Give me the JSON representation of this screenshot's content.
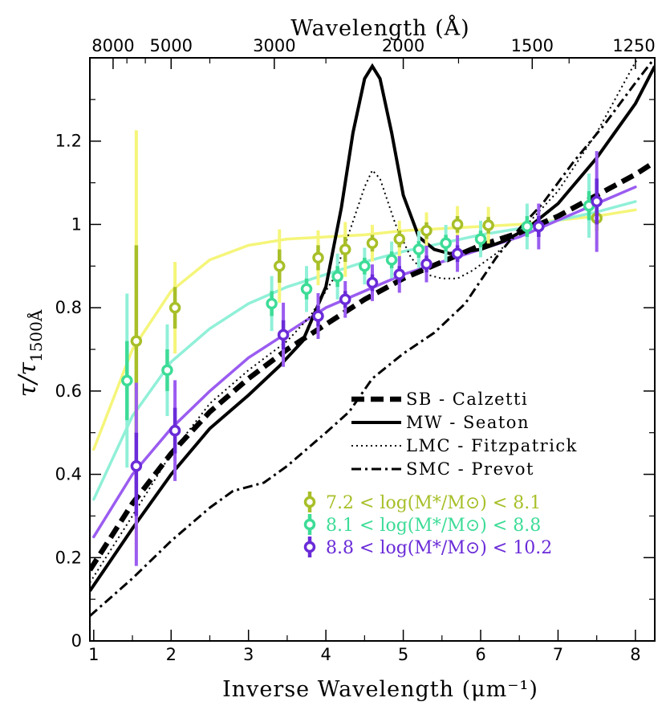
{
  "chart_data": {
    "type": "line",
    "xlabel": "Inverse Wavelength (μm⁻¹)",
    "ylabel": "τ/τ1500Å",
    "top_axis_label": "Wavelength (Å)",
    "xlim": [
      0.95,
      8.25
    ],
    "ylim": [
      0,
      1.4
    ],
    "x_ticks": [
      "1",
      "2",
      "3",
      "4",
      "5",
      "6",
      "7",
      "8"
    ],
    "y_ticks": [
      "0",
      "0.2",
      "0.4",
      "0.6",
      "0.8",
      "1",
      "1.2"
    ],
    "top_ticks": [
      "8000",
      "5000",
      "3000",
      "2000",
      "1500",
      "1250"
    ],
    "curves": [
      {
        "name": "SB - Calzetti",
        "style": "dashed-thick",
        "color": "#000000",
        "x": [
          0.95,
          1.5,
          2.0,
          2.5,
          3.0,
          3.5,
          4.0,
          4.5,
          5.0,
          5.5,
          6.0,
          6.5,
          7.0,
          7.5,
          8.0,
          8.25
        ],
        "y": [
          0.17,
          0.33,
          0.45,
          0.55,
          0.63,
          0.7,
          0.76,
          0.82,
          0.87,
          0.91,
          0.95,
          0.98,
          1.02,
          1.07,
          1.12,
          1.15
        ]
      },
      {
        "name": "MW - Seaton",
        "style": "solid",
        "color": "#000000",
        "x": [
          0.95,
          1.5,
          2.0,
          2.5,
          3.0,
          3.4,
          3.7,
          4.0,
          4.2,
          4.35,
          4.5,
          4.6,
          4.7,
          4.85,
          5.0,
          5.2,
          5.4,
          5.6,
          5.8,
          6.0,
          6.3,
          6.6,
          7.0,
          7.5,
          8.0,
          8.25
        ],
        "y": [
          0.12,
          0.27,
          0.4,
          0.51,
          0.59,
          0.66,
          0.72,
          0.85,
          1.04,
          1.22,
          1.35,
          1.38,
          1.35,
          1.22,
          1.07,
          0.97,
          0.94,
          0.93,
          0.935,
          0.94,
          0.96,
          0.99,
          1.05,
          1.16,
          1.29,
          1.38
        ]
      },
      {
        "name": "LMC - Fitzpatrick",
        "style": "dotted",
        "color": "#000000",
        "x": [
          0.95,
          1.5,
          2.0,
          2.5,
          3.0,
          3.5,
          3.8,
          4.1,
          4.3,
          4.5,
          4.6,
          4.7,
          4.9,
          5.1,
          5.3,
          5.5,
          5.7,
          5.9,
          6.2,
          6.5,
          7.0,
          7.5,
          8.0,
          8.25
        ],
        "y": [
          0.14,
          0.3,
          0.45,
          0.57,
          0.65,
          0.72,
          0.78,
          0.87,
          0.98,
          1.09,
          1.13,
          1.11,
          1.0,
          0.92,
          0.88,
          0.87,
          0.87,
          0.89,
          0.93,
          0.98,
          1.08,
          1.22,
          1.39,
          1.45
        ]
      },
      {
        "name": "SMC - Prevot",
        "style": "dashdot",
        "color": "#000000",
        "x": [
          0.95,
          1.5,
          2.0,
          2.5,
          2.8,
          3.2,
          3.5,
          4.0,
          4.3,
          4.6,
          5.0,
          5.4,
          5.8,
          6.2,
          6.5,
          6.8,
          7.2,
          7.6,
          8.0,
          8.25
        ],
        "y": [
          0.06,
          0.15,
          0.24,
          0.32,
          0.36,
          0.38,
          0.42,
          0.5,
          0.55,
          0.63,
          0.69,
          0.74,
          0.81,
          0.92,
          0.99,
          1.05,
          1.15,
          1.24,
          1.34,
          1.4
        ]
      }
    ],
    "series": [
      {
        "name": "7.2 < log(M*/M⊙) < 8.1",
        "color": "#a8bf28",
        "fit_color": "#f5f57a",
        "fit_x": [
          1.0,
          1.5,
          2.0,
          2.5,
          3.0,
          3.5,
          4.0,
          4.5,
          5.0,
          5.5,
          6.0,
          6.5,
          7.0,
          7.5,
          8.0
        ],
        "fit_y": [
          0.46,
          0.7,
          0.84,
          0.915,
          0.95,
          0.965,
          0.97,
          0.975,
          0.985,
          0.99,
          0.995,
          1.0,
          1.01,
          1.02,
          1.035
        ],
        "points": [
          {
            "x": 1.55,
            "y": 0.72,
            "lo": 0.49,
            "hi": 0.95
          },
          {
            "x": 2.05,
            "y": 0.8,
            "lo": 0.75,
            "hi": 0.85
          },
          {
            "x": 3.4,
            "y": 0.9,
            "lo": 0.86,
            "hi": 0.94
          },
          {
            "x": 3.9,
            "y": 0.92,
            "lo": 0.89,
            "hi": 0.95
          },
          {
            "x": 4.25,
            "y": 0.94,
            "lo": 0.91,
            "hi": 0.97
          },
          {
            "x": 4.6,
            "y": 0.955,
            "lo": 0.935,
            "hi": 0.975
          },
          {
            "x": 4.95,
            "y": 0.965,
            "lo": 0.945,
            "hi": 0.985
          },
          {
            "x": 5.3,
            "y": 0.985,
            "lo": 0.965,
            "hi": 1.005
          },
          {
            "x": 5.7,
            "y": 1.0,
            "lo": 0.98,
            "hi": 1.02
          },
          {
            "x": 6.1,
            "y": 0.998,
            "lo": 0.978,
            "hi": 1.018
          },
          {
            "x": 7.5,
            "y": 1.015,
            "lo": 0.985,
            "hi": 1.045
          }
        ]
      },
      {
        "name": "8.1 < log(M*/M⊙) < 8.8",
        "color": "#3ddc97",
        "fit_color": "#90f0d8",
        "fit_x": [
          1.0,
          1.5,
          2.0,
          2.5,
          3.0,
          3.5,
          4.0,
          4.5,
          5.0,
          5.5,
          6.0,
          6.5,
          7.0,
          7.5,
          8.0
        ],
        "fit_y": [
          0.34,
          0.54,
          0.67,
          0.75,
          0.81,
          0.85,
          0.88,
          0.91,
          0.935,
          0.955,
          0.975,
          0.99,
          1.01,
          1.03,
          1.055
        ],
        "points": [
          {
            "x": 1.43,
            "y": 0.625,
            "lo": 0.53,
            "hi": 0.72
          },
          {
            "x": 1.95,
            "y": 0.65,
            "lo": 0.6,
            "hi": 0.7
          },
          {
            "x": 3.3,
            "y": 0.81,
            "lo": 0.78,
            "hi": 0.84
          },
          {
            "x": 3.75,
            "y": 0.845,
            "lo": 0.82,
            "hi": 0.87
          },
          {
            "x": 4.15,
            "y": 0.875,
            "lo": 0.85,
            "hi": 0.9
          },
          {
            "x": 4.5,
            "y": 0.9,
            "lo": 0.88,
            "hi": 0.92
          },
          {
            "x": 4.85,
            "y": 0.915,
            "lo": 0.895,
            "hi": 0.935
          },
          {
            "x": 5.2,
            "y": 0.94,
            "lo": 0.92,
            "hi": 0.96
          },
          {
            "x": 5.55,
            "y": 0.955,
            "lo": 0.935,
            "hi": 0.975
          },
          {
            "x": 6.0,
            "y": 0.965,
            "lo": 0.945,
            "hi": 0.985
          },
          {
            "x": 6.6,
            "y": 0.995,
            "lo": 0.97,
            "hi": 1.02
          },
          {
            "x": 7.4,
            "y": 1.045,
            "lo": 1.01,
            "hi": 1.08
          }
        ]
      },
      {
        "name": "8.8 < log(M*/M⊙) < 10.2",
        "color": "#6a2bd8",
        "fit_color": "#9a5cf0",
        "fit_x": [
          1.0,
          1.5,
          2.0,
          2.5,
          3.0,
          3.5,
          4.0,
          4.5,
          5.0,
          5.5,
          6.0,
          6.5,
          7.0,
          7.5,
          8.0
        ],
        "fit_y": [
          0.25,
          0.4,
          0.51,
          0.6,
          0.68,
          0.74,
          0.8,
          0.84,
          0.88,
          0.91,
          0.94,
          0.97,
          1.01,
          1.05,
          1.09
        ],
        "points": [
          {
            "x": 1.55,
            "y": 0.42,
            "lo": 0.3,
            "hi": 0.5
          },
          {
            "x": 2.05,
            "y": 0.505,
            "lo": 0.45,
            "hi": 0.56
          },
          {
            "x": 3.45,
            "y": 0.735,
            "lo": 0.7,
            "hi": 0.77
          },
          {
            "x": 3.9,
            "y": 0.78,
            "lo": 0.755,
            "hi": 0.805
          },
          {
            "x": 4.25,
            "y": 0.82,
            "lo": 0.8,
            "hi": 0.84
          },
          {
            "x": 4.6,
            "y": 0.86,
            "lo": 0.84,
            "hi": 0.88
          },
          {
            "x": 4.95,
            "y": 0.88,
            "lo": 0.86,
            "hi": 0.9
          },
          {
            "x": 5.3,
            "y": 0.905,
            "lo": 0.885,
            "hi": 0.925
          },
          {
            "x": 5.7,
            "y": 0.93,
            "lo": 0.91,
            "hi": 0.95
          },
          {
            "x": 6.75,
            "y": 0.995,
            "lo": 0.97,
            "hi": 1.02
          },
          {
            "x": 7.5,
            "y": 1.055,
            "lo": 1.0,
            "hi": 1.11
          }
        ]
      }
    ],
    "legend_curves": [
      "SB   - Calzetti",
      "MW  - Seaton",
      "LMC - Fitzpatrick",
      "SMC - Prevot"
    ],
    "legend_placement": "lower-right",
    "grid": false
  }
}
